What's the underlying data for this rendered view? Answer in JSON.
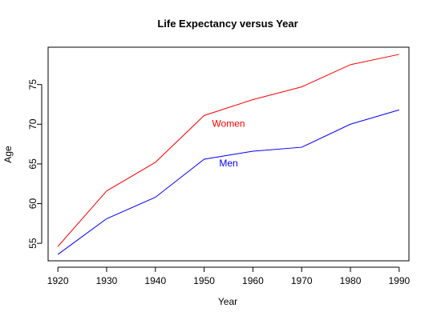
{
  "chart_data": {
    "type": "line",
    "title": "Life Expectancy versus Year",
    "xlabel": "Year",
    "ylabel": "Age",
    "x": [
      1920,
      1930,
      1940,
      1950,
      1960,
      1970,
      1980,
      1990
    ],
    "x_ticks": [
      "1920",
      "1930",
      "1940",
      "1950",
      "1960",
      "1970",
      "1980",
      "1990"
    ],
    "y_ticks": [
      "55",
      "60",
      "65",
      "70",
      "75"
    ],
    "xlim": [
      1918,
      1992
    ],
    "ylim": [
      52.8,
      79.7
    ],
    "grid": false,
    "series": [
      {
        "name": "Women",
        "color": "#ff0000",
        "values": [
          54.6,
          61.6,
          65.2,
          71.1,
          73.1,
          74.7,
          77.5,
          78.8
        ],
        "label_at": [
          1955,
          70
        ]
      },
      {
        "name": "Men",
        "color": "#0000ff",
        "values": [
          53.6,
          58.1,
          60.8,
          65.6,
          66.6,
          67.1,
          70.0,
          71.8
        ],
        "label_at": [
          1955,
          65
        ]
      }
    ]
  }
}
